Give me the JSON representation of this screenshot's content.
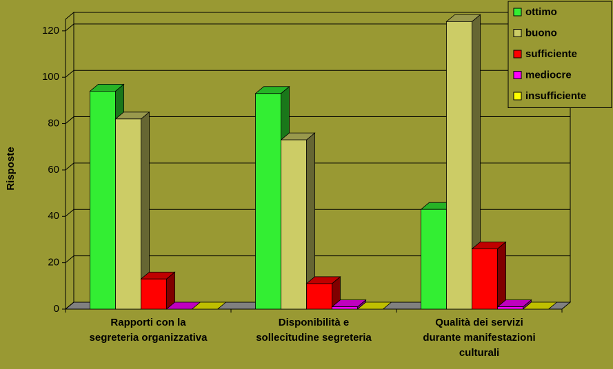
{
  "chart_data": {
    "type": "bar3d",
    "y_label": "Risposte",
    "categories": [
      [
        "Rapporti con la",
        "segreteria organizzativa"
      ],
      [
        "Disponibilità e",
        "sollecitudine segreteria"
      ],
      [
        "Qualità dei servizi",
        "durante manifestazioni",
        "culturali"
      ]
    ],
    "series": [
      {
        "name": "ottimo",
        "color": "#33ee33",
        "values": [
          94,
          93,
          43
        ]
      },
      {
        "name": "buono",
        "color": "#cccc66",
        "values": [
          82,
          73,
          124
        ]
      },
      {
        "name": "sufficiente",
        "color": "#ff0000",
        "values": [
          13,
          11,
          26
        ]
      },
      {
        "name": "mediocre",
        "color": "#ff00ff",
        "values": [
          0,
          1,
          1
        ]
      },
      {
        "name": "insufficiente",
        "color": "#ffff00",
        "values": [
          0,
          0,
          0
        ]
      }
    ],
    "ylim": [
      0,
      125
    ],
    "yticks": [
      0,
      20,
      40,
      60,
      80,
      100,
      120
    ],
    "grid": true,
    "legend": "top-right"
  }
}
